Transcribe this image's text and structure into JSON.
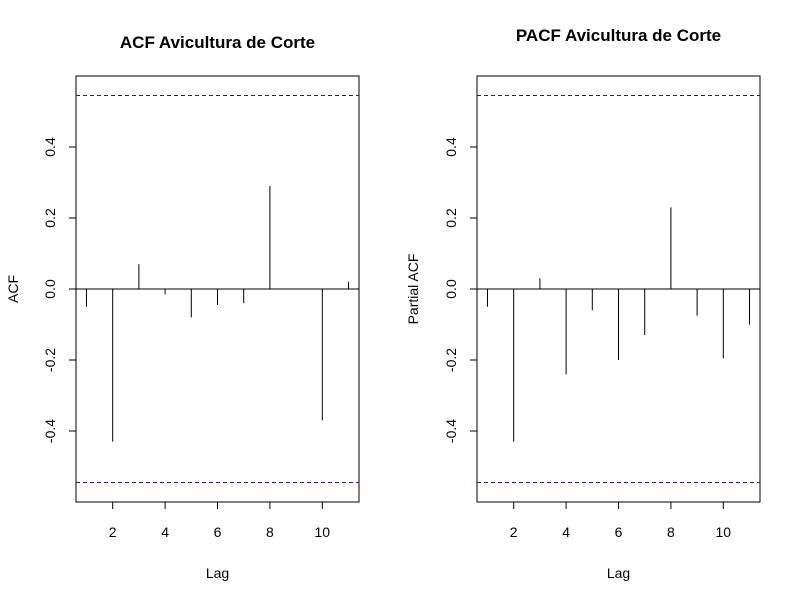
{
  "colors": {
    "background": "#ffffff",
    "ink": "#000000",
    "confidence": "#1a1a8c"
  },
  "chart_data": [
    {
      "type": "bar",
      "title": "ACF Avicultura de Corte",
      "xlabel": "Lag",
      "ylabel": "ACF",
      "xlim": [
        0.6,
        11.4
      ],
      "ylim": [
        -0.6,
        0.6
      ],
      "xticks": [
        2,
        4,
        6,
        8,
        10
      ],
      "yticks": [
        -0.4,
        -0.2,
        0.0,
        0.2,
        0.4
      ],
      "ytick_labels": [
        "-0.4",
        "-0.2",
        "0.0",
        "0.2",
        "0.4"
      ],
      "confidence_bounds": [
        0.545,
        -0.545
      ],
      "lags": [
        1,
        2,
        3,
        4,
        5,
        6,
        7,
        8,
        9,
        10,
        11
      ],
      "values": [
        -0.05,
        -0.43,
        0.07,
        -0.015,
        -0.08,
        -0.045,
        -0.04,
        0.29,
        0.0,
        -0.37,
        0.02
      ],
      "grid": false,
      "legend": "none"
    },
    {
      "type": "bar",
      "title": "PACF Avicultura de Corte",
      "xlabel": "Lag",
      "ylabel": "Partial ACF",
      "xlim": [
        0.6,
        11.4
      ],
      "ylim": [
        -0.6,
        0.6
      ],
      "xticks": [
        2,
        4,
        6,
        8,
        10
      ],
      "yticks": [
        -0.4,
        -0.2,
        0.0,
        0.2,
        0.4
      ],
      "ytick_labels": [
        "-0.4",
        "-0.2",
        "0.0",
        "0.2",
        "0.4"
      ],
      "confidence_bounds": [
        0.545,
        -0.545
      ],
      "lags": [
        1,
        2,
        3,
        4,
        5,
        6,
        7,
        8,
        9,
        10,
        11
      ],
      "values": [
        -0.05,
        -0.43,
        0.03,
        -0.24,
        -0.06,
        -0.2,
        -0.13,
        0.23,
        -0.075,
        -0.195,
        -0.1
      ],
      "grid": false,
      "legend": "none"
    }
  ]
}
